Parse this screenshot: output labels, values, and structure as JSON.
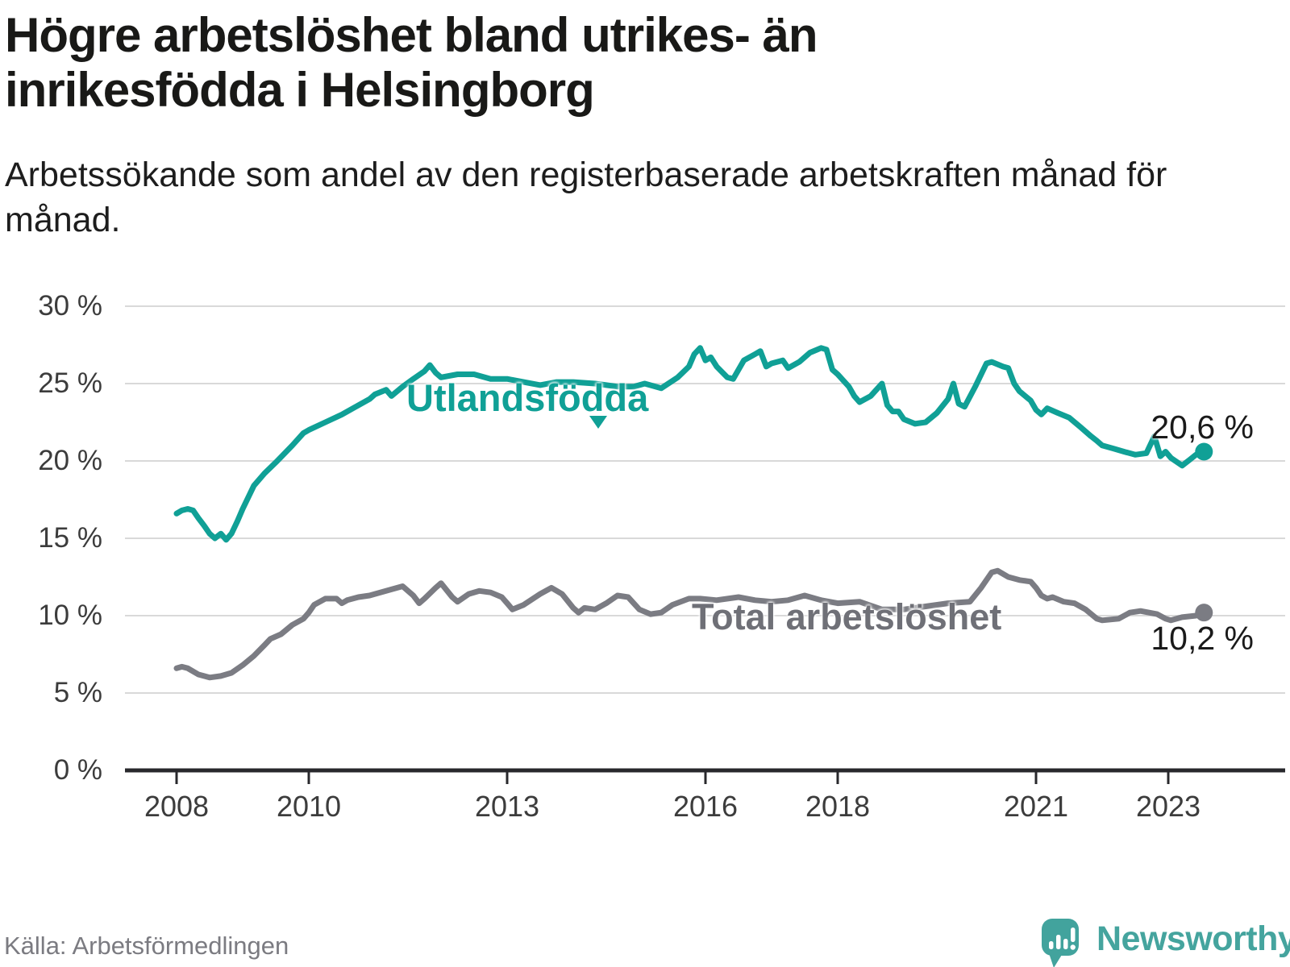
{
  "title": "Högre arbetslöshet bland utrikes- än inrikesfödda i Helsingborg",
  "subtitle": "Arbetssökande som andel av den registerbaserade arbetskraften månad för månad.",
  "source": "Källa: Arbetsförmedlingen",
  "branding": {
    "name": "Newsworthy",
    "logo_icon": "speech-bubble-bar-chart-icon",
    "color": "#45a49e"
  },
  "colors": {
    "foreign_born_line": "#10a096",
    "total_line": "#7b7c83",
    "grid": "#d9d9d9",
    "axis": "#28282c",
    "title_text": "#191917",
    "tick_text": "#3c3c3c",
    "source_text": "#7b7b81"
  },
  "chart_data": {
    "type": "line",
    "title": "Högre arbetslöshet bland utrikes- än inrikesfödda i Helsingborg",
    "xlabel": "",
    "ylabel": "",
    "x_axis": {
      "ticks": [
        2008,
        2010,
        2013,
        2016,
        2018,
        2021,
        2023
      ],
      "tick_labels": [
        "2008",
        "2010",
        "2013",
        "2016",
        "2018",
        "2021",
        "2023"
      ],
      "range": [
        2007.75,
        2023.95
      ]
    },
    "y_axis": {
      "ticks": [
        0,
        5,
        10,
        15,
        20,
        25,
        30
      ],
      "tick_labels": [
        "0 %",
        "5 %",
        "10 %",
        "15 %",
        "20 %",
        "25 %",
        "30 %"
      ],
      "range": [
        0,
        31.5
      ],
      "grid": true
    },
    "legend_position": "inline-labels",
    "series": [
      {
        "name": "Utlandsfödda",
        "color": "#10a096",
        "end_label": "20,6 %",
        "end_value": 20.6,
        "points": [
          [
            2008.0,
            16.6
          ],
          [
            2008.08,
            16.8
          ],
          [
            2008.17,
            16.9
          ],
          [
            2008.25,
            16.8
          ],
          [
            2008.33,
            16.3
          ],
          [
            2008.42,
            15.8
          ],
          [
            2008.5,
            15.3
          ],
          [
            2008.58,
            15.0
          ],
          [
            2008.67,
            15.3
          ],
          [
            2008.75,
            14.9
          ],
          [
            2008.83,
            15.3
          ],
          [
            2008.92,
            16.1
          ],
          [
            2009.0,
            16.9
          ],
          [
            2009.17,
            18.4
          ],
          [
            2009.33,
            19.2
          ],
          [
            2009.5,
            19.9
          ],
          [
            2009.75,
            21.0
          ],
          [
            2009.92,
            21.8
          ],
          [
            2010.0,
            22.0
          ],
          [
            2010.25,
            22.5
          ],
          [
            2010.5,
            23.0
          ],
          [
            2010.75,
            23.6
          ],
          [
            2010.92,
            24.0
          ],
          [
            2011.0,
            24.3
          ],
          [
            2011.17,
            24.6
          ],
          [
            2011.25,
            24.2
          ],
          [
            2011.42,
            24.8
          ],
          [
            2011.58,
            25.3
          ],
          [
            2011.75,
            25.8
          ],
          [
            2011.83,
            26.2
          ],
          [
            2011.92,
            25.7
          ],
          [
            2012.0,
            25.4
          ],
          [
            2012.25,
            25.6
          ],
          [
            2012.5,
            25.6
          ],
          [
            2012.75,
            25.3
          ],
          [
            2013.0,
            25.3
          ],
          [
            2013.25,
            25.1
          ],
          [
            2013.5,
            24.9
          ],
          [
            2013.75,
            25.1
          ],
          [
            2014.0,
            25.1
          ],
          [
            2014.33,
            25.0
          ],
          [
            2014.67,
            24.8
          ],
          [
            2014.92,
            24.8
          ],
          [
            2015.08,
            25.0
          ],
          [
            2015.33,
            24.7
          ],
          [
            2015.58,
            25.4
          ],
          [
            2015.75,
            26.1
          ],
          [
            2015.83,
            26.9
          ],
          [
            2015.92,
            27.3
          ],
          [
            2016.0,
            26.5
          ],
          [
            2016.08,
            26.7
          ],
          [
            2016.17,
            26.1
          ],
          [
            2016.33,
            25.4
          ],
          [
            2016.42,
            25.3
          ],
          [
            2016.58,
            26.5
          ],
          [
            2016.75,
            26.9
          ],
          [
            2016.83,
            27.1
          ],
          [
            2016.92,
            26.1
          ],
          [
            2017.0,
            26.3
          ],
          [
            2017.17,
            26.5
          ],
          [
            2017.25,
            26.0
          ],
          [
            2017.42,
            26.4
          ],
          [
            2017.58,
            27.0
          ],
          [
            2017.75,
            27.3
          ],
          [
            2017.83,
            27.2
          ],
          [
            2017.92,
            25.9
          ],
          [
            2018.0,
            25.6
          ],
          [
            2018.17,
            24.8
          ],
          [
            2018.25,
            24.2
          ],
          [
            2018.33,
            23.8
          ],
          [
            2018.5,
            24.2
          ],
          [
            2018.67,
            25.0
          ],
          [
            2018.75,
            23.6
          ],
          [
            2018.83,
            23.2
          ],
          [
            2018.92,
            23.2
          ],
          [
            2019.0,
            22.7
          ],
          [
            2019.17,
            22.4
          ],
          [
            2019.33,
            22.5
          ],
          [
            2019.5,
            23.1
          ],
          [
            2019.67,
            24.0
          ],
          [
            2019.75,
            25.0
          ],
          [
            2019.83,
            23.7
          ],
          [
            2019.92,
            23.5
          ],
          [
            2020.08,
            24.8
          ],
          [
            2020.25,
            26.3
          ],
          [
            2020.33,
            26.4
          ],
          [
            2020.5,
            26.1
          ],
          [
            2020.58,
            26.0
          ],
          [
            2020.67,
            25.0
          ],
          [
            2020.75,
            24.5
          ],
          [
            2020.92,
            23.9
          ],
          [
            2021.0,
            23.3
          ],
          [
            2021.08,
            23.0
          ],
          [
            2021.17,
            23.4
          ],
          [
            2021.33,
            23.1
          ],
          [
            2021.5,
            22.8
          ],
          [
            2021.67,
            22.2
          ],
          [
            2021.83,
            21.6
          ],
          [
            2021.92,
            21.3
          ],
          [
            2022.0,
            21.0
          ],
          [
            2022.17,
            20.8
          ],
          [
            2022.33,
            20.6
          ],
          [
            2022.5,
            20.4
          ],
          [
            2022.67,
            20.5
          ],
          [
            2022.79,
            21.6
          ],
          [
            2022.88,
            20.3
          ],
          [
            2022.96,
            20.6
          ],
          [
            2023.04,
            20.2
          ],
          [
            2023.21,
            19.7
          ],
          [
            2023.33,
            20.1
          ],
          [
            2023.42,
            20.4
          ],
          [
            2023.54,
            20.6
          ]
        ]
      },
      {
        "name": "Total arbetslöshet",
        "color": "#7b7c83",
        "end_label": "10,2 %",
        "end_value": 10.2,
        "points": [
          [
            2008.0,
            6.6
          ],
          [
            2008.08,
            6.7
          ],
          [
            2008.17,
            6.6
          ],
          [
            2008.33,
            6.2
          ],
          [
            2008.5,
            6.0
          ],
          [
            2008.67,
            6.1
          ],
          [
            2008.83,
            6.3
          ],
          [
            2009.0,
            6.8
          ],
          [
            2009.17,
            7.4
          ],
          [
            2009.33,
            8.1
          ],
          [
            2009.42,
            8.5
          ],
          [
            2009.58,
            8.8
          ],
          [
            2009.75,
            9.4
          ],
          [
            2009.92,
            9.8
          ],
          [
            2010.0,
            10.2
          ],
          [
            2010.08,
            10.7
          ],
          [
            2010.25,
            11.1
          ],
          [
            2010.42,
            11.1
          ],
          [
            2010.5,
            10.8
          ],
          [
            2010.58,
            11.0
          ],
          [
            2010.75,
            11.2
          ],
          [
            2010.92,
            11.3
          ],
          [
            2011.0,
            11.4
          ],
          [
            2011.25,
            11.7
          ],
          [
            2011.42,
            11.9
          ],
          [
            2011.58,
            11.3
          ],
          [
            2011.67,
            10.8
          ],
          [
            2011.75,
            11.1
          ],
          [
            2011.92,
            11.8
          ],
          [
            2012.0,
            12.1
          ],
          [
            2012.17,
            11.2
          ],
          [
            2012.25,
            10.9
          ],
          [
            2012.42,
            11.4
          ],
          [
            2012.58,
            11.6
          ],
          [
            2012.75,
            11.5
          ],
          [
            2012.92,
            11.2
          ],
          [
            2013.0,
            10.8
          ],
          [
            2013.08,
            10.4
          ],
          [
            2013.25,
            10.7
          ],
          [
            2013.5,
            11.4
          ],
          [
            2013.67,
            11.8
          ],
          [
            2013.83,
            11.4
          ],
          [
            2014.0,
            10.5
          ],
          [
            2014.08,
            10.2
          ],
          [
            2014.17,
            10.5
          ],
          [
            2014.33,
            10.4
          ],
          [
            2014.5,
            10.8
          ],
          [
            2014.67,
            11.3
          ],
          [
            2014.83,
            11.2
          ],
          [
            2015.0,
            10.4
          ],
          [
            2015.17,
            10.1
          ],
          [
            2015.33,
            10.2
          ],
          [
            2015.5,
            10.7
          ],
          [
            2015.75,
            11.1
          ],
          [
            2015.92,
            11.1
          ],
          [
            2016.17,
            11.0
          ],
          [
            2016.5,
            11.2
          ],
          [
            2016.75,
            11.0
          ],
          [
            2017.0,
            10.9
          ],
          [
            2017.25,
            11.0
          ],
          [
            2017.5,
            11.3
          ],
          [
            2017.75,
            11.0
          ],
          [
            2018.0,
            10.8
          ],
          [
            2018.33,
            10.9
          ],
          [
            2018.67,
            10.4
          ],
          [
            2019.0,
            10.4
          ],
          [
            2019.33,
            10.6
          ],
          [
            2019.67,
            10.8
          ],
          [
            2020.0,
            10.9
          ],
          [
            2020.17,
            11.8
          ],
          [
            2020.33,
            12.8
          ],
          [
            2020.42,
            12.9
          ],
          [
            2020.58,
            12.5
          ],
          [
            2020.75,
            12.3
          ],
          [
            2020.92,
            12.2
          ],
          [
            2021.0,
            11.8
          ],
          [
            2021.08,
            11.3
          ],
          [
            2021.17,
            11.1
          ],
          [
            2021.25,
            11.2
          ],
          [
            2021.42,
            10.9
          ],
          [
            2021.58,
            10.8
          ],
          [
            2021.75,
            10.4
          ],
          [
            2021.92,
            9.8
          ],
          [
            2022.0,
            9.7
          ],
          [
            2022.25,
            9.8
          ],
          [
            2022.42,
            10.2
          ],
          [
            2022.58,
            10.3
          ],
          [
            2022.83,
            10.1
          ],
          [
            2022.96,
            9.8
          ],
          [
            2023.04,
            9.7
          ],
          [
            2023.21,
            9.9
          ],
          [
            2023.42,
            10.0
          ],
          [
            2023.54,
            10.2
          ]
        ]
      }
    ]
  }
}
